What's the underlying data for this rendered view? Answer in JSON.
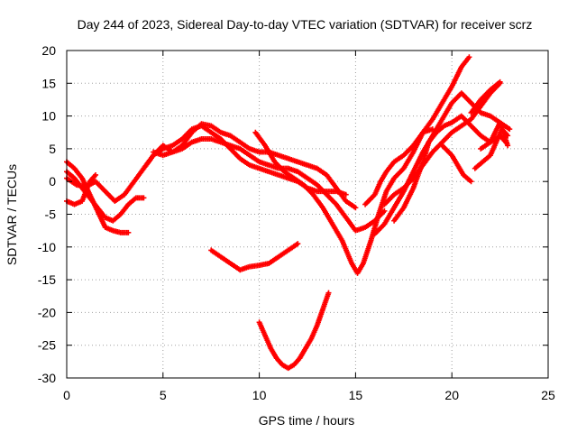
{
  "chart_data": {
    "type": "scatter",
    "title": "Day 244 of 2023, Sidereal Day-to-day VTEC variation (SDTVAR) for receiver scrz",
    "xlabel": "GPS time / hours",
    "ylabel": "SDTVAR / TECUs",
    "xlim": [
      0,
      25
    ],
    "ylim": [
      -30,
      20
    ],
    "x_ticks": [
      "0",
      "5",
      "10",
      "15",
      "20",
      "25"
    ],
    "y_ticks": [
      "20",
      "15",
      "10",
      "5",
      "0",
      "-5",
      "-10",
      "-15",
      "-20",
      "-25",
      "-30"
    ],
    "grid": true,
    "marker": "+",
    "color": "#ff0000",
    "series": [
      {
        "points": [
          [
            0.0,
            1.5
          ],
          [
            0.4,
            0.5
          ],
          [
            0.8,
            -1.0
          ],
          [
            1.2,
            -2.5
          ],
          [
            1.6,
            -4.0
          ],
          [
            2.0,
            -5.5
          ],
          [
            2.4,
            -6.0
          ],
          [
            2.8,
            -5.0
          ],
          [
            3.2,
            -3.5
          ],
          [
            3.6,
            -2.5
          ],
          [
            4.0,
            -2.5
          ]
        ]
      },
      {
        "points": [
          [
            0.0,
            3.0
          ],
          [
            0.4,
            2.0
          ],
          [
            0.8,
            0.5
          ],
          [
            1.2,
            -2.0
          ],
          [
            1.6,
            -4.5
          ],
          [
            2.0,
            -7.0
          ],
          [
            2.4,
            -7.5
          ],
          [
            2.8,
            -7.8
          ],
          [
            3.2,
            -7.8
          ]
        ]
      },
      {
        "points": [
          [
            0.0,
            -3.0
          ],
          [
            0.4,
            -3.5
          ],
          [
            0.8,
            -3.0
          ],
          [
            1.0,
            -1.5
          ],
          [
            1.2,
            0.0
          ],
          [
            1.5,
            1.0
          ]
        ]
      },
      {
        "points": [
          [
            0.0,
            0.5
          ],
          [
            0.5,
            -0.5
          ],
          [
            1.0,
            -0.8
          ],
          [
            1.5,
            0.0
          ],
          [
            2.0,
            -1.5
          ],
          [
            2.5,
            -3.0
          ],
          [
            3.0,
            -2.0
          ],
          [
            3.5,
            0.0
          ],
          [
            4.0,
            2.0
          ],
          [
            4.5,
            4.0
          ],
          [
            5.0,
            5.5
          ],
          [
            5.5,
            4.5
          ],
          [
            6.0,
            5.5
          ],
          [
            6.5,
            7.5
          ],
          [
            7.0,
            8.8
          ],
          [
            7.5,
            8.5
          ],
          [
            8.0,
            7.5
          ],
          [
            8.5,
            7.0
          ],
          [
            9.0,
            6.0
          ],
          [
            9.5,
            5.0
          ],
          [
            10.0,
            4.5
          ],
          [
            10.5,
            4.5
          ],
          [
            11.0,
            4.0
          ],
          [
            11.5,
            3.5
          ],
          [
            12.0,
            3.0
          ],
          [
            12.5,
            2.5
          ],
          [
            13.0,
            2.0
          ],
          [
            13.5,
            1.0
          ],
          [
            14.0,
            -1.0
          ],
          [
            14.5,
            -3.0
          ],
          [
            15.0,
            -4.0
          ]
        ]
      },
      {
        "points": [
          [
            4.0,
            2.0
          ],
          [
            4.5,
            4.0
          ],
          [
            5.0,
            5.0
          ],
          [
            5.5,
            5.5
          ],
          [
            6.0,
            6.5
          ],
          [
            6.5,
            8.0
          ],
          [
            7.0,
            8.5
          ],
          [
            7.5,
            7.5
          ],
          [
            8.0,
            6.5
          ],
          [
            8.5,
            5.0
          ],
          [
            9.0,
            3.5
          ],
          [
            9.5,
            2.5
          ],
          [
            10.0,
            2.0
          ],
          [
            10.5,
            1.5
          ],
          [
            11.0,
            1.0
          ],
          [
            11.5,
            0.5
          ],
          [
            12.0,
            0.0
          ],
          [
            12.5,
            -1.0
          ],
          [
            13.0,
            -1.5
          ],
          [
            13.5,
            -1.5
          ],
          [
            14.0,
            -1.5
          ],
          [
            14.5,
            -2.0
          ]
        ]
      },
      {
        "points": [
          [
            4.5,
            4.5
          ],
          [
            5.0,
            4.0
          ],
          [
            5.5,
            4.5
          ],
          [
            6.0,
            5.0
          ],
          [
            6.5,
            6.0
          ],
          [
            7.0,
            6.5
          ],
          [
            7.5,
            6.5
          ],
          [
            8.0,
            6.0
          ],
          [
            8.5,
            5.5
          ],
          [
            9.0,
            5.0
          ],
          [
            9.5,
            4.0
          ],
          [
            10.0,
            3.0
          ],
          [
            10.5,
            2.5
          ],
          [
            11.0,
            2.0
          ],
          [
            11.5,
            2.0
          ],
          [
            12.0,
            1.5
          ],
          [
            12.5,
            0.5
          ],
          [
            13.0,
            -0.5
          ],
          [
            13.5,
            -2.0
          ],
          [
            14.0,
            -3.5
          ],
          [
            14.5,
            -5.5
          ],
          [
            15.0,
            -7.5
          ],
          [
            15.5,
            -7.0
          ],
          [
            16.0,
            -6.0
          ],
          [
            16.5,
            -4.5
          ]
        ]
      },
      {
        "points": [
          [
            9.8,
            7.5
          ],
          [
            10.3,
            5.5
          ],
          [
            10.8,
            3.0
          ],
          [
            11.3,
            1.5
          ],
          [
            11.8,
            0.5
          ],
          [
            12.3,
            -0.5
          ],
          [
            12.8,
            -2.0
          ],
          [
            13.3,
            -4.0
          ],
          [
            13.8,
            -6.5
          ],
          [
            14.3,
            -9.0
          ],
          [
            14.8,
            -12.5
          ],
          [
            15.1,
            -14.0
          ],
          [
            15.4,
            -12.5
          ],
          [
            15.8,
            -9.0
          ],
          [
            16.2,
            -5.0
          ],
          [
            16.6,
            -1.5
          ],
          [
            17.0,
            0.5
          ],
          [
            17.5,
            2.0
          ],
          [
            18.0,
            4.5
          ],
          [
            18.5,
            7.5
          ],
          [
            19.0,
            9.5
          ],
          [
            19.5,
            12.0
          ],
          [
            20.0,
            14.5
          ],
          [
            20.5,
            17.5
          ],
          [
            20.9,
            19.0
          ]
        ]
      },
      {
        "points": [
          [
            16.0,
            -8.0
          ],
          [
            16.5,
            -6.5
          ],
          [
            17.0,
            -4.0
          ],
          [
            17.5,
            -1.5
          ],
          [
            18.0,
            1.5
          ],
          [
            18.5,
            4.5
          ],
          [
            19.0,
            7.0
          ],
          [
            19.5,
            9.5
          ],
          [
            20.0,
            12.0
          ],
          [
            20.5,
            13.5
          ],
          [
            21.0,
            12.0
          ],
          [
            21.5,
            10.5
          ],
          [
            22.0,
            10.0
          ],
          [
            22.5,
            9.0
          ],
          [
            23.0,
            8.0
          ]
        ]
      },
      {
        "points": [
          [
            16.5,
            -3.5
          ],
          [
            17.0,
            -2.0
          ],
          [
            17.5,
            -1.0
          ],
          [
            18.0,
            0.5
          ],
          [
            18.5,
            2.5
          ],
          [
            19.0,
            4.5
          ],
          [
            19.5,
            6.0
          ],
          [
            20.0,
            7.5
          ],
          [
            20.5,
            8.5
          ],
          [
            21.0,
            9.5
          ],
          [
            21.5,
            11.5
          ],
          [
            22.0,
            13.5
          ],
          [
            22.5,
            15.0
          ]
        ]
      },
      {
        "points": [
          [
            17.0,
            -6.0
          ],
          [
            17.5,
            -4.0
          ],
          [
            18.0,
            -1.0
          ],
          [
            18.5,
            3.0
          ],
          [
            18.8,
            6.0
          ],
          [
            19.2,
            7.5
          ],
          [
            19.6,
            8.5
          ],
          [
            20.0,
            9.0
          ],
          [
            20.5,
            10.0
          ],
          [
            21.0,
            8.5
          ],
          [
            21.5,
            7.0
          ],
          [
            22.0,
            6.0
          ],
          [
            22.5,
            7.0
          ],
          [
            22.8,
            6.0
          ]
        ]
      },
      {
        "points": [
          [
            15.5,
            -3.5
          ],
          [
            16.0,
            -2.0
          ],
          [
            16.3,
            0.0
          ],
          [
            16.6,
            1.5
          ],
          [
            17.0,
            3.0
          ],
          [
            17.5,
            4.0
          ],
          [
            18.0,
            5.5
          ],
          [
            18.5,
            7.5
          ],
          [
            19.0,
            8.0
          ]
        ]
      },
      {
        "points": [
          [
            19.5,
            5.5
          ],
          [
            20.0,
            4.0
          ],
          [
            20.3,
            2.5
          ],
          [
            20.6,
            1.0
          ],
          [
            21.0,
            0.0
          ]
        ]
      },
      {
        "points": [
          [
            21.0,
            10.5
          ],
          [
            21.5,
            12.5
          ],
          [
            22.0,
            14.0
          ],
          [
            22.5,
            15.2
          ]
        ]
      },
      {
        "points": [
          [
            21.2,
            2.0
          ],
          [
            21.6,
            3.0
          ],
          [
            22.0,
            4.0
          ],
          [
            22.3,
            6.0
          ],
          [
            22.6,
            8.0
          ],
          [
            22.9,
            7.0
          ]
        ]
      },
      {
        "points": [
          [
            21.5,
            5.0
          ],
          [
            22.0,
            6.0
          ],
          [
            22.5,
            9.0
          ],
          [
            22.9,
            5.5
          ]
        ]
      },
      {
        "points": [
          [
            7.5,
            -10.5
          ],
          [
            8.0,
            -11.5
          ],
          [
            8.5,
            -12.5
          ],
          [
            9.0,
            -13.5
          ],
          [
            9.5,
            -13.0
          ],
          [
            10.0,
            -12.8
          ],
          [
            10.5,
            -12.5
          ],
          [
            11.0,
            -11.5
          ],
          [
            11.5,
            -10.5
          ],
          [
            12.0,
            -9.5
          ]
        ]
      },
      {
        "points": [
          [
            10.0,
            -21.5
          ],
          [
            10.3,
            -23.5
          ],
          [
            10.6,
            -25.5
          ],
          [
            10.9,
            -27.0
          ],
          [
            11.2,
            -28.0
          ],
          [
            11.5,
            -28.5
          ],
          [
            11.8,
            -28.0
          ],
          [
            12.1,
            -27.0
          ],
          [
            12.4,
            -25.5
          ],
          [
            12.7,
            -24.0
          ],
          [
            13.0,
            -22.0
          ],
          [
            13.3,
            -19.5
          ],
          [
            13.6,
            -17.0
          ]
        ]
      }
    ]
  }
}
